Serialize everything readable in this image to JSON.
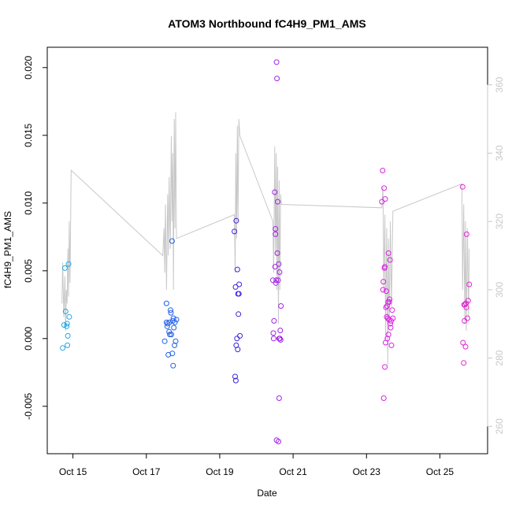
{
  "chart_data": {
    "type": "scatter",
    "title": "ATOM3 Northbound fC4H9_PM1_AMS",
    "xlabel": "Date",
    "ylabel": "fC4H9_PM1_AMS",
    "x_ticks": [
      "Oct 15",
      "Oct 17",
      "Oct 19",
      "Oct 21",
      "Oct 23",
      "Oct 25"
    ],
    "x_tick_values": [
      15,
      17,
      19,
      21,
      23,
      25
    ],
    "xlim": [
      14.3,
      26.3
    ],
    "y_ticks": [
      "-0.005",
      "0.000",
      "0.005",
      "0.010",
      "0.015",
      "0.020"
    ],
    "y_tick_values": [
      -0.005,
      0.0,
      0.005,
      0.01,
      0.015,
      0.02
    ],
    "ylim": [
      -0.0085,
      0.0215
    ],
    "y2_ticks": [
      "260",
      "280",
      "300",
      "320",
      "340",
      "360"
    ],
    "y2_tick_values": [
      260,
      280,
      300,
      320,
      340,
      360
    ],
    "y2lim": [
      252,
      371
    ],
    "colors": {
      "axis": "#000000",
      "secondary_axis": "#c8c8c8",
      "secondary_line": "#c8c8c8"
    },
    "point_series": [
      {
        "color": "#23a6e3",
        "points": [
          [
            14.72,
            -0.0007
          ],
          [
            14.78,
            0.0052
          ],
          [
            14.8,
            0.002
          ],
          [
            14.76,
            0.001
          ],
          [
            14.83,
            0.0009
          ],
          [
            14.84,
            0.0011
          ],
          [
            14.85,
            -0.0005
          ],
          [
            14.86,
            0.0002
          ],
          [
            14.88,
            0.0055
          ],
          [
            14.9,
            0.0016
          ]
        ]
      },
      {
        "color": "#1f5fe8",
        "points": [
          [
            17.5,
            -0.0002
          ],
          [
            17.55,
            0.0026
          ],
          [
            17.55,
            0.0012
          ],
          [
            17.57,
            0.0009
          ],
          [
            17.58,
            0.0011
          ],
          [
            17.6,
            -0.0012
          ],
          [
            17.62,
            0.0005
          ],
          [
            17.63,
            0.0012
          ],
          [
            17.64,
            0.0003
          ],
          [
            17.66,
            0.0021
          ],
          [
            17.67,
            0.0019
          ],
          [
            17.68,
            0.0003
          ],
          [
            17.7,
            0.0072
          ],
          [
            17.71,
            -0.0011
          ],
          [
            17.72,
            0.0013
          ],
          [
            17.73,
            -0.002
          ],
          [
            17.74,
            0.0015
          ],
          [
            17.75,
            0.0008
          ],
          [
            17.77,
            -0.0005
          ],
          [
            17.78,
            0.0012
          ],
          [
            17.8,
            -0.0002
          ],
          [
            17.82,
            0.0014
          ]
        ]
      },
      {
        "color": "#3a26de",
        "points": [
          [
            19.4,
            0.0079
          ],
          [
            19.42,
            -0.0028
          ],
          [
            19.43,
            0.0038
          ],
          [
            19.44,
            -0.0031
          ],
          [
            19.45,
            0.0087
          ],
          [
            19.45,
            -0.0005
          ],
          [
            19.47,
            0.0
          ],
          [
            19.48,
            0.0051
          ],
          [
            19.49,
            -0.0008
          ],
          [
            19.5,
            0.0033
          ],
          [
            19.51,
            0.0018
          ],
          [
            19.52,
            0.0033
          ],
          [
            19.53,
            0.004
          ],
          [
            19.55,
            0.0002
          ]
        ]
      },
      {
        "color": "#a424e6",
        "points": [
          [
            20.45,
            0.0043
          ],
          [
            20.46,
            0.0004
          ],
          [
            20.47,
            0.0
          ],
          [
            20.48,
            0.0013
          ],
          [
            20.5,
            0.0108
          ],
          [
            20.51,
            0.0053
          ],
          [
            20.52,
            0.0077
          ],
          [
            20.52,
            0.0081
          ],
          [
            20.53,
            0.0041
          ],
          [
            20.54,
            0.0043
          ],
          [
            20.55,
            0.0204
          ],
          [
            20.55,
            -0.0075
          ],
          [
            20.56,
            0.0192
          ],
          [
            20.57,
            0.0063
          ],
          [
            20.58,
            0.0101
          ],
          [
            20.59,
            0.0043
          ],
          [
            20.6,
            -0.0076
          ],
          [
            20.61,
            0.0055
          ],
          [
            20.62,
            -0.0044
          ],
          [
            20.62,
            0.0
          ],
          [
            20.63,
            0.0049
          ],
          [
            20.64,
            0.0
          ],
          [
            20.65,
            0.0006
          ],
          [
            20.66,
            -0.0001
          ],
          [
            20.67,
            0.0024
          ]
        ]
      },
      {
        "color": "#d824e3",
        "points": [
          [
            23.42,
            0.0101
          ],
          [
            23.44,
            0.0124
          ],
          [
            23.45,
            0.0036
          ],
          [
            23.46,
            0.0042
          ],
          [
            23.47,
            -0.0044
          ],
          [
            23.48,
            0.0111
          ],
          [
            23.49,
            0.0052
          ],
          [
            23.5,
            0.0053
          ],
          [
            23.5,
            -0.0021
          ],
          [
            23.51,
            0.0103
          ],
          [
            23.52,
            -0.0003
          ],
          [
            23.53,
            0.0023
          ],
          [
            23.54,
            0.0035
          ],
          [
            23.55,
            0.0016
          ],
          [
            23.56,
            0.0024
          ],
          [
            23.57,
            0.0
          ],
          [
            23.58,
            0.0015
          ],
          [
            23.59,
            0.0027
          ],
          [
            23.6,
            0.0063
          ],
          [
            23.6,
            0.0003
          ],
          [
            23.61,
            0.0014
          ],
          [
            23.62,
            0.0027
          ],
          [
            23.63,
            0.0029
          ],
          [
            23.64,
            0.0058
          ],
          [
            23.65,
            0.0011
          ],
          [
            23.66,
            0.0008
          ],
          [
            23.67,
            0.0013
          ],
          [
            23.68,
            -0.0005
          ],
          [
            23.7,
            0.0021
          ],
          [
            23.72,
            0.0015
          ]
        ]
      },
      {
        "color": "#e326d4",
        "points": [
          [
            25.62,
            0.0112
          ],
          [
            25.63,
            -0.0003
          ],
          [
            25.65,
            -0.0018
          ],
          [
            25.66,
            0.0025
          ],
          [
            25.67,
            0.0013
          ],
          [
            25.68,
            0.0025
          ],
          [
            25.7,
            -0.0006
          ],
          [
            25.71,
            0.0026
          ],
          [
            25.72,
            0.0023
          ],
          [
            25.73,
            0.0077
          ],
          [
            25.75,
            0.0015
          ],
          [
            25.77,
            0.0028
          ],
          [
            25.8,
            0.004
          ]
        ]
      }
    ],
    "secondary_line_segments": [
      [
        [
          14.7,
          296
        ],
        [
          14.72,
          308
        ],
        [
          14.75,
          292
        ],
        [
          14.78,
          304
        ],
        [
          14.8,
          288
        ],
        [
          14.82,
          300
        ],
        [
          14.84,
          296
        ],
        [
          14.86,
          312
        ],
        [
          14.88,
          298
        ],
        [
          14.9,
          320
        ],
        [
          14.92,
          302
        ],
        [
          14.95,
          335
        ],
        [
          17.45,
          310
        ],
        [
          17.48,
          318
        ],
        [
          17.5,
          305
        ],
        [
          17.52,
          325
        ],
        [
          17.55,
          300
        ],
        [
          17.58,
          328
        ],
        [
          17.6,
          310
        ],
        [
          17.62,
          333
        ],
        [
          17.65,
          312
        ],
        [
          17.68,
          345
        ],
        [
          17.7,
          320
        ],
        [
          17.72,
          340
        ],
        [
          17.74,
          300
        ],
        [
          17.76,
          350
        ],
        [
          17.78,
          318
        ],
        [
          17.8,
          352
        ],
        [
          17.82,
          315
        ],
        [
          19.4,
          322
        ],
        [
          19.42,
          305
        ],
        [
          19.44,
          340
        ],
        [
          19.46,
          315
        ],
        [
          19.48,
          348
        ],
        [
          19.5,
          320
        ],
        [
          19.52,
          350
        ],
        [
          19.55,
          345
        ],
        [
          20.45,
          320
        ],
        [
          20.47,
          305
        ],
        [
          20.5,
          342
        ],
        [
          20.52,
          310
        ],
        [
          20.54,
          340
        ],
        [
          20.56,
          300
        ],
        [
          20.58,
          336
        ],
        [
          20.6,
          290
        ],
        [
          20.62,
          332
        ],
        [
          20.64,
          300
        ],
        [
          20.66,
          328
        ],
        [
          20.68,
          325
        ],
        [
          23.42,
          324
        ],
        [
          23.45,
          330
        ],
        [
          23.47,
          300
        ],
        [
          23.5,
          322
        ],
        [
          23.52,
          285
        ],
        [
          23.55,
          318
        ],
        [
          23.58,
          278
        ],
        [
          23.6,
          315
        ],
        [
          23.62,
          290
        ],
        [
          23.65,
          320
        ],
        [
          23.68,
          295
        ],
        [
          23.72,
          323
        ],
        [
          25.6,
          331
        ],
        [
          25.62,
          300
        ],
        [
          25.65,
          325
        ],
        [
          25.68,
          290
        ],
        [
          25.7,
          320
        ],
        [
          25.72,
          288
        ],
        [
          25.75,
          318
        ],
        [
          25.78,
          292
        ],
        [
          25.8,
          312
        ]
      ]
    ]
  }
}
